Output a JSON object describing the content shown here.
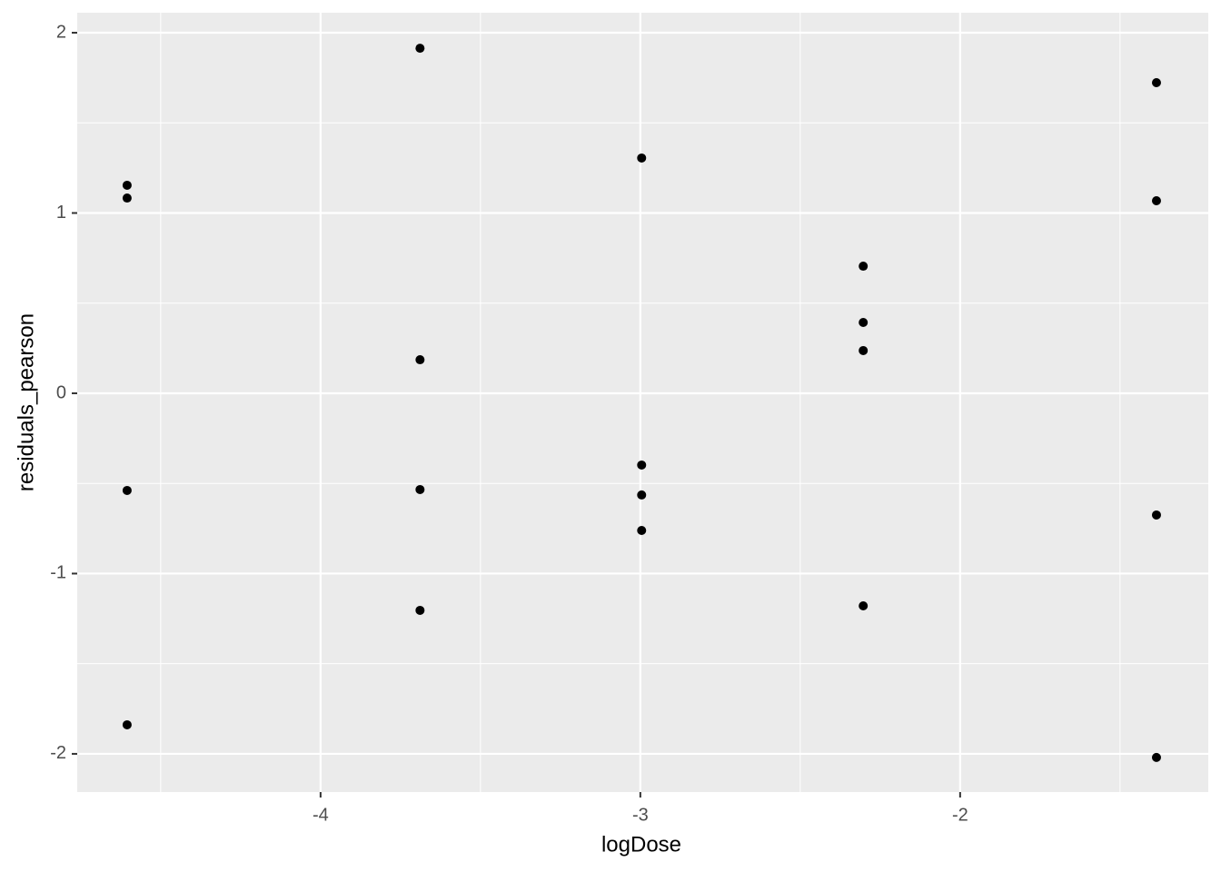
{
  "chart_data": {
    "type": "scatter",
    "x_label": "logDose",
    "y_label": "residuals_pearson",
    "x": [
      -4.605,
      -4.605,
      -4.605,
      -4.605,
      -3.689,
      -3.689,
      -3.689,
      -3.689,
      -2.996,
      -2.996,
      -2.996,
      -2.996,
      -2.303,
      -2.303,
      -2.303,
      -2.303,
      -1.386,
      -1.386,
      -1.386,
      -1.386
    ],
    "series": [
      {
        "color": "#000000",
        "values": [
          1.154,
          1.083,
          -0.539,
          -1.839,
          1.914,
          0.186,
          -0.534,
          -1.204,
          1.305,
          -0.398,
          -0.564,
          -0.761,
          0.705,
          0.393,
          0.237,
          -1.179,
          1.723,
          1.068,
          -0.675,
          -2.02
        ]
      }
    ],
    "xlim": [
      -4.761,
      -1.224
    ],
    "ylim": [
      -2.212,
      2.111
    ],
    "xticks": [
      -4,
      -3,
      -2
    ],
    "yticks": [
      -2,
      -1,
      0,
      1,
      2
    ],
    "x_minor_ticks": [
      -4.5,
      -3.5,
      -2.5,
      -1.5
    ],
    "y_minor_ticks": [
      -1.5,
      -0.5,
      0.5,
      1.5
    ],
    "grid": true,
    "panel_color": "#ebebeb",
    "grid_color": "#ffffff"
  }
}
